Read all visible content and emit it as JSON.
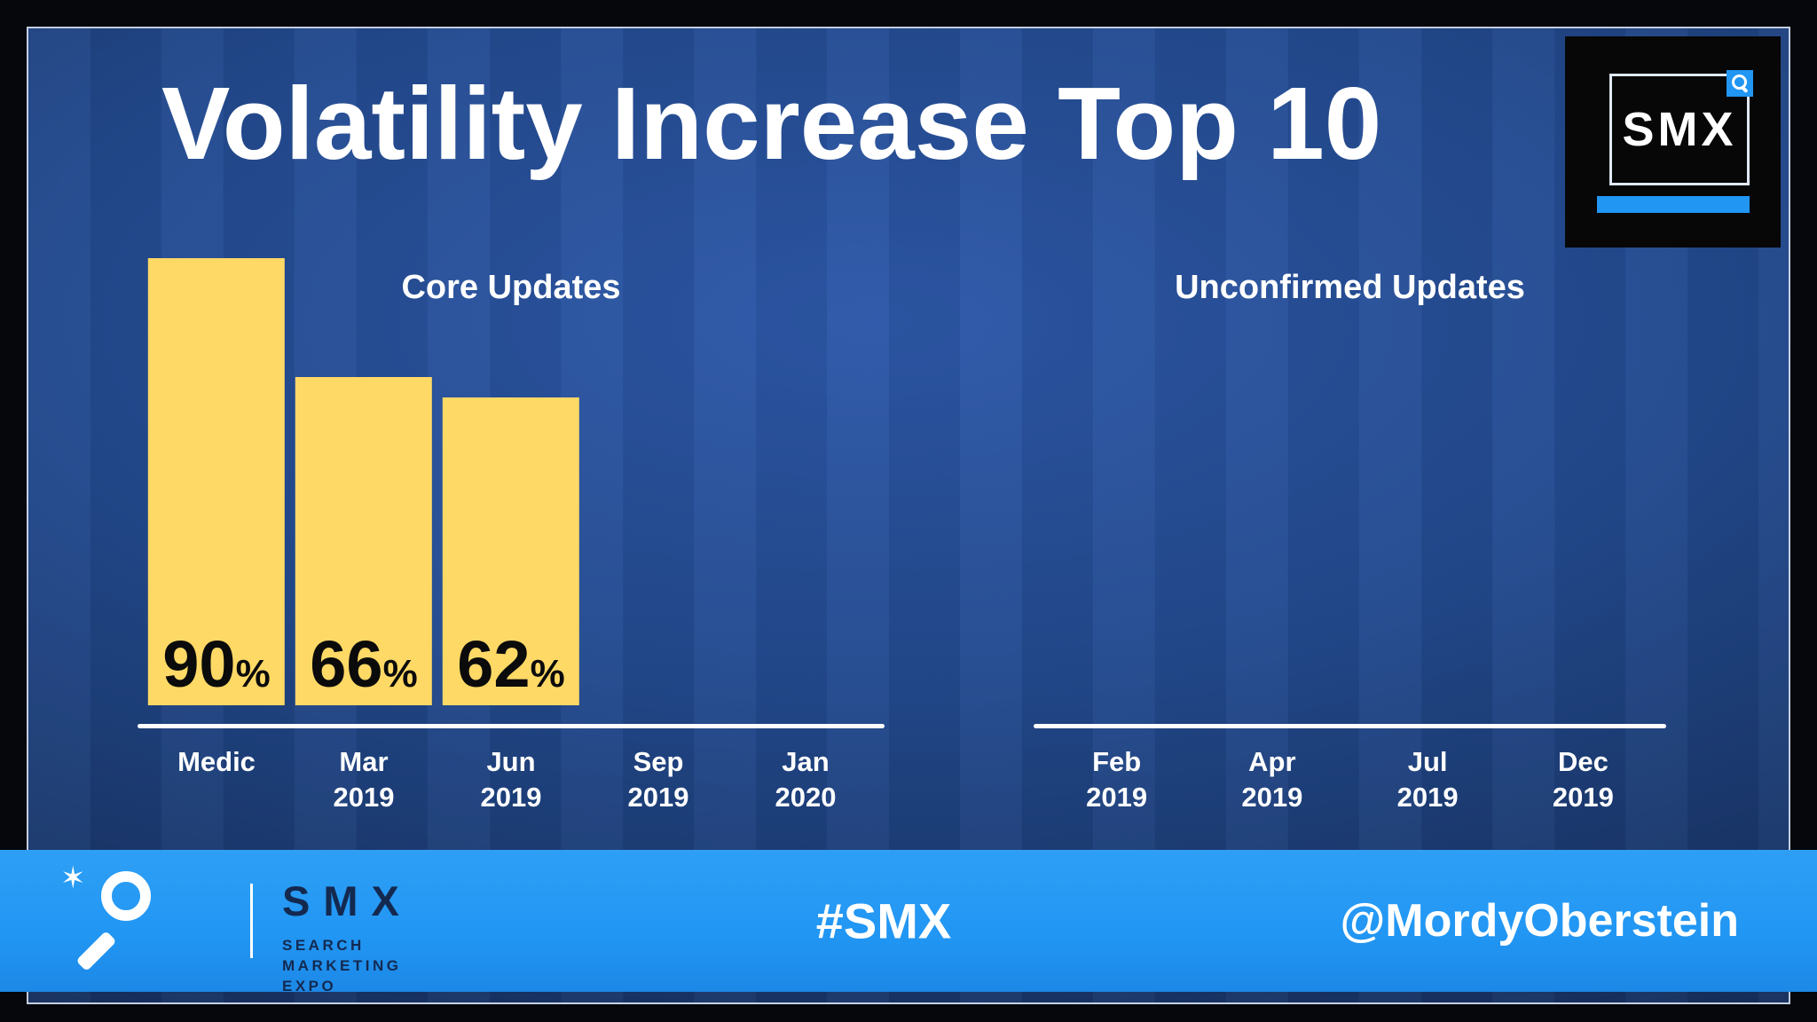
{
  "slide": {
    "title": "Volatility Increase Top 10",
    "corner_logo_text": "SMX"
  },
  "colors": {
    "bar": "#FFD966",
    "accent_blue": "#2196F3",
    "footer_bg": "#2196F3",
    "slide_bg": "#234A8E",
    "title_text": "#FFFFFF"
  },
  "chart_data": [
    {
      "type": "bar",
      "title": "Core Updates",
      "categories": [
        [
          "Medic"
        ],
        [
          "Mar",
          "2019"
        ],
        [
          "Jun",
          "2019"
        ],
        [
          "Sep",
          "2019"
        ],
        [
          "Jan",
          "2020"
        ]
      ],
      "values": [
        90,
        66,
        62,
        null,
        null
      ],
      "value_labels": [
        "90%",
        "66%",
        "62%",
        null,
        null
      ],
      "value_suffix": "%",
      "xlabel": "",
      "ylabel": "",
      "ylim": [
        0,
        100
      ],
      "grid": false,
      "legend": false,
      "bar_color": "#FFD966"
    },
    {
      "type": "bar",
      "title": "Unconfirmed Updates",
      "categories": [
        [
          "Feb",
          "2019"
        ],
        [
          "Apr",
          "2019"
        ],
        [
          "Jul",
          "2019"
        ],
        [
          "Dec",
          "2019"
        ]
      ],
      "values": [
        null,
        null,
        null,
        null
      ],
      "value_labels": [
        null,
        null,
        null,
        null
      ],
      "value_suffix": "%",
      "xlabel": "",
      "ylabel": "",
      "ylim": [
        0,
        100
      ],
      "grid": false,
      "legend": false,
      "bar_color": "#FFD966"
    }
  ],
  "footer": {
    "hashtag": "#SMX",
    "handle": "@MordyOberstein",
    "logo_text": "SMX",
    "logo_sub_lines": [
      "SEARCH",
      "MARKETING",
      "EXPO"
    ]
  }
}
